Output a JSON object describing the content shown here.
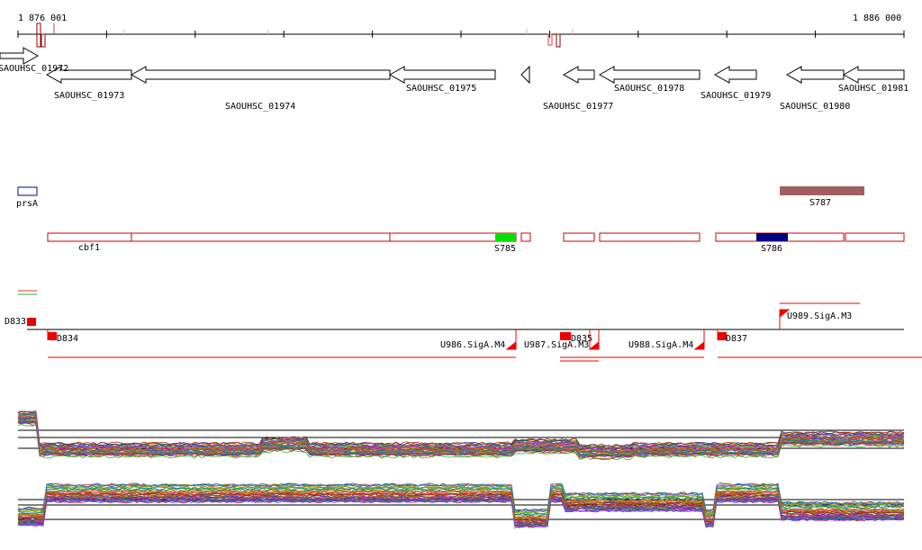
{
  "ruler": {
    "start_label": "1 876 001",
    "end_label": "1 886 000"
  },
  "genes": {
    "g1972": "SAOUHSC_01972",
    "g1973": "SAOUHSC_01973",
    "g1974": "SAOUHSC_01974",
    "g1975": "SAOUHSC_01975",
    "g1977": "SAOUHSC_01977",
    "g1978": "SAOUHSC_01978",
    "g1979": "SAOUHSC_01979",
    "g1980": "SAOUHSC_01980",
    "g1981": "SAOUHSC_01981"
  },
  "annotations": {
    "prsA": "prsA",
    "S787": "S787",
    "cbf1": "cbf1",
    "S785": "S785",
    "S786": "S786"
  },
  "features": {
    "D833": "D833",
    "D834": "D834",
    "D835": "D835",
    "D837": "D837",
    "U986": "U986.SigA.M4",
    "U987": "U987.SigA.M3",
    "U988": "U988.SigA.M4",
    "U989": "U989.SigA.M3"
  },
  "colors": {
    "gene_outline": "#000000",
    "annotation_red": "#cc0000",
    "s785_green": "#00e000",
    "s786_navy": "#000080",
    "s787_brown": "#a06060",
    "prsA_blue": "#0000aa",
    "feature_red": "#ee0000"
  }
}
